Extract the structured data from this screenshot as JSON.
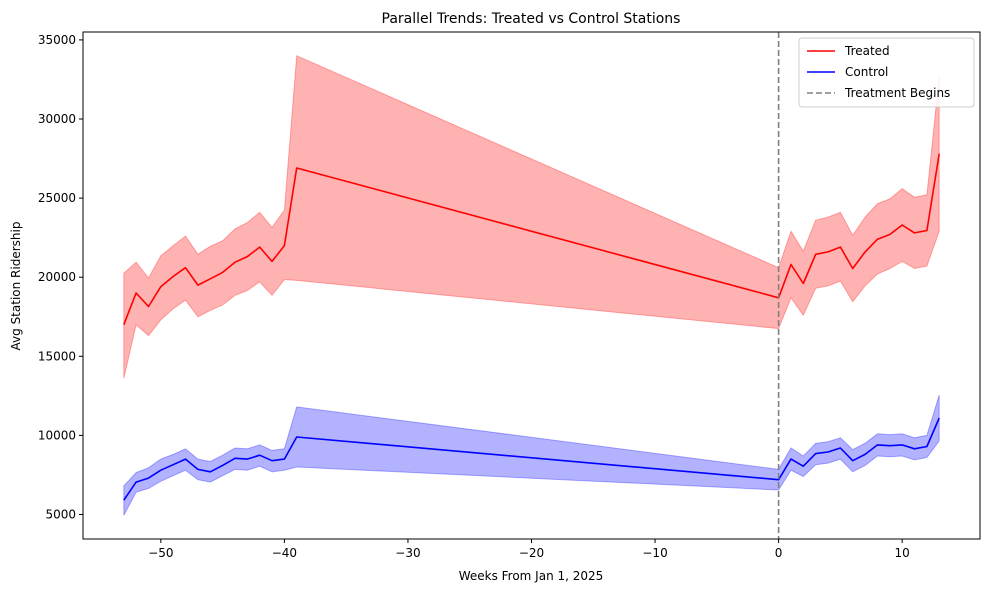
{
  "chart_data": {
    "type": "line",
    "title": "Parallel Trends: Treated vs Control Stations",
    "xlabel": "Weeks From Jan 1, 2025",
    "ylabel": "Avg Station Ridership",
    "xlim": [
      -56.3,
      16.3
    ],
    "ylim": [
      3450,
      35500
    ],
    "xticks": [
      -50,
      -40,
      -30,
      -20,
      -10,
      0,
      10
    ],
    "xtick_labels": [
      "−50",
      "−40",
      "−30",
      "−20",
      "−10",
      "0",
      "10"
    ],
    "yticks": [
      5000,
      10000,
      15000,
      20000,
      25000,
      30000,
      35000
    ],
    "ytick_labels": [
      "5000",
      "10000",
      "15000",
      "20000",
      "25000",
      "30000",
      "35000"
    ],
    "legend_position": "top-right",
    "grid": false,
    "x": [
      -53,
      -52,
      -51,
      -50,
      -49,
      -48,
      -47,
      -46,
      -45,
      -44,
      -43,
      -42,
      -41,
      -40,
      -39,
      0,
      1,
      2,
      3,
      4,
      5,
      6,
      7,
      8,
      9,
      10,
      11,
      12,
      13
    ],
    "series": [
      {
        "name": "Treated",
        "color": "#ff0000",
        "band_color": "#ff0000",
        "values": [
          17000,
          19000,
          18150,
          19400,
          20050,
          20600,
          19500,
          19900,
          20300,
          20950,
          21300,
          21900,
          21000,
          22000,
          26900,
          18700,
          20800,
          19600,
          21450,
          21600,
          21900,
          20550,
          21600,
          22400,
          22700,
          23300,
          22800,
          22950,
          27800
        ],
        "lower": [
          13600,
          17000,
          16300,
          17300,
          18000,
          18550,
          17500,
          17900,
          18250,
          18850,
          19150,
          19700,
          18850,
          19850,
          19800,
          16750,
          18700,
          17600,
          19300,
          19450,
          19750,
          18450,
          19450,
          20200,
          20550,
          21000,
          20550,
          20700,
          22900
        ],
        "upper": [
          20250,
          20950,
          19950,
          21350,
          22000,
          22600,
          21450,
          21950,
          22300,
          23050,
          23450,
          24100,
          23150,
          24250,
          34000,
          20600,
          22900,
          21650,
          23600,
          23800,
          24100,
          22650,
          23800,
          24650,
          24950,
          25600,
          25050,
          25200,
          32700
        ]
      },
      {
        "name": "Control",
        "color": "#0000ff",
        "band_color": "#0000ff",
        "values": [
          5900,
          7050,
          7300,
          7800,
          8150,
          8500,
          7850,
          7700,
          8100,
          8550,
          8500,
          8750,
          8400,
          8500,
          9900,
          7200,
          8500,
          8050,
          8850,
          8950,
          9200,
          8400,
          8800,
          9400,
          9350,
          9400,
          9150,
          9300,
          11100
        ],
        "lower": [
          4950,
          6400,
          6650,
          7100,
          7450,
          7800,
          7200,
          7050,
          7450,
          7850,
          7800,
          8050,
          7700,
          7800,
          8000,
          6550,
          7800,
          7400,
          8150,
          8250,
          8500,
          7700,
          8100,
          8700,
          8650,
          8700,
          8450,
          8600,
          9650
        ],
        "upper": [
          6800,
          7650,
          7950,
          8500,
          8800,
          9150,
          8500,
          8350,
          8750,
          9200,
          9150,
          9400,
          9050,
          9150,
          11800,
          7850,
          9200,
          8700,
          9500,
          9600,
          9850,
          9100,
          9500,
          10100,
          10050,
          10100,
          9850,
          10000,
          12550
        ]
      }
    ],
    "vline": {
      "x": 0,
      "name": "Treatment Begins",
      "color": "#808080"
    }
  }
}
